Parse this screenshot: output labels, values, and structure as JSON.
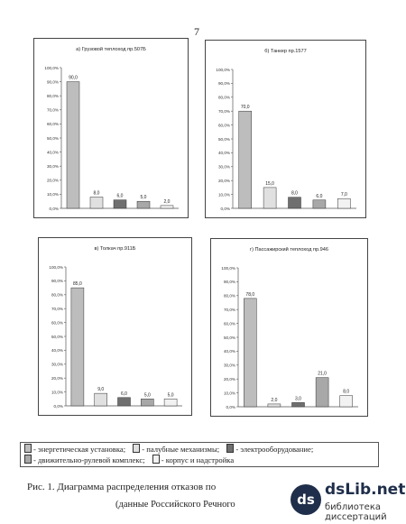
{
  "page_number": "7",
  "panel_titles": [
    "а) Грузовой теплоход пр.507Б",
    "б) Танкер пр.1577",
    "в) Толкач пр.911Б",
    "г) Пассажирский теплоход пр.946"
  ],
  "legend": {
    "line1": [
      {
        "color": "#bdbdbd",
        "label": "- энергетическая установка;"
      },
      {
        "color": "#e0e0e0",
        "label": "- палубные механизмы;"
      },
      {
        "color": "#6f6f6f",
        "label": "- электрооборудование;"
      }
    ],
    "line2": [
      {
        "color": "#a8a8a8",
        "label": "- движительно-рулевой комплекс;"
      },
      {
        "color": "#f2f2f2",
        "label": "- корпус и надстройка"
      }
    ]
  },
  "caption": "Рис. 1. Диаграмма распределения отказов по",
  "source": "(данные Российского Речного",
  "watermark": {
    "brand": "dsLib.net",
    "subtitle": "библиотека диссертаций",
    "icon": "dsLib-logo-icon"
  },
  "chart_data": [
    {
      "type": "bar",
      "title": "а) Грузовой теплоход пр.507Б",
      "categories": [
        "энергетическая установка",
        "палубные механизмы",
        "электрооборудование",
        "движительно-рулевой комплекс",
        "корпус и надстройка"
      ],
      "values": [
        90.0,
        8.0,
        6.0,
        5.0,
        2.0
      ],
      "labels": [
        "90,0",
        "8,0",
        "6,0",
        "5,0",
        "2,0"
      ],
      "ylim": [
        0,
        100
      ],
      "ytick_step": 10,
      "ylabels": [
        "0,0%",
        "10,0%",
        "20,0%",
        "30,0%",
        "40,0%",
        "50,0%",
        "60,0%",
        "70,0%",
        "80,0%",
        "90,0%",
        "100,0%"
      ],
      "colors": [
        "#bdbdbd",
        "#e0e0e0",
        "#6f6f6f",
        "#a8a8a8",
        "#f2f2f2"
      ]
    },
    {
      "type": "bar",
      "title": "б) Танкер пр.1577",
      "categories": [
        "энергетическая установка",
        "палубные механизмы",
        "электрооборудование",
        "движительно-рулевой комплекс",
        "корпус и надстройка"
      ],
      "values": [
        70.0,
        15.0,
        8.0,
        6.0,
        7.0
      ],
      "labels": [
        "70,0",
        "15,0",
        "8,0",
        "6,0",
        "7,0"
      ],
      "ylim": [
        0,
        100
      ],
      "ytick_step": 10,
      "ylabels": [
        "0,0%",
        "10,0%",
        "20,0%",
        "30,0%",
        "40,0%",
        "50,0%",
        "60,0%",
        "70,0%",
        "80,0%",
        "90,0%",
        "100,0%"
      ],
      "colors": [
        "#bdbdbd",
        "#e0e0e0",
        "#6f6f6f",
        "#a8a8a8",
        "#f2f2f2"
      ]
    },
    {
      "type": "bar",
      "title": "в) Толкач пр.911Б",
      "categories": [
        "энергетическая установка",
        "палубные механизмы",
        "электрооборудование",
        "движительно-рулевой комплекс",
        "корпус и надстройка"
      ],
      "values": [
        85.0,
        9.0,
        6.0,
        5.0,
        5.0
      ],
      "labels": [
        "85,0",
        "9,0",
        "6,0",
        "5,0",
        "5,0"
      ],
      "ylim": [
        0,
        100
      ],
      "ytick_step": 10,
      "ylabels": [
        "0,0%",
        "10,0%",
        "20,0%",
        "30,0%",
        "40,0%",
        "50,0%",
        "60,0%",
        "70,0%",
        "80,0%",
        "90,0%",
        "100,0%"
      ],
      "colors": [
        "#bdbdbd",
        "#e0e0e0",
        "#6f6f6f",
        "#a8a8a8",
        "#f2f2f2"
      ]
    },
    {
      "type": "bar",
      "title": "г) Пассажирский теплоход пр.946",
      "categories": [
        "энергетическая установка",
        "палубные механизмы",
        "электрооборудование",
        "движительно-рулевой комплекс",
        "корпус и надстройка"
      ],
      "values": [
        78.0,
        2.0,
        3.0,
        21.0,
        8.0
      ],
      "labels": [
        "78,0",
        "2,0",
        "3,0",
        "21,0",
        "8,0"
      ],
      "ylim": [
        0,
        100
      ],
      "ytick_step": 10,
      "ylabels": [
        "0,0%",
        "10,0%",
        "20,0%",
        "30,0%",
        "40,0%",
        "50,0%",
        "60,0%",
        "70,0%",
        "80,0%",
        "90,0%",
        "100,0%"
      ],
      "colors": [
        "#bdbdbd",
        "#e0e0e0",
        "#6f6f6f",
        "#a8a8a8",
        "#f2f2f2"
      ]
    }
  ]
}
